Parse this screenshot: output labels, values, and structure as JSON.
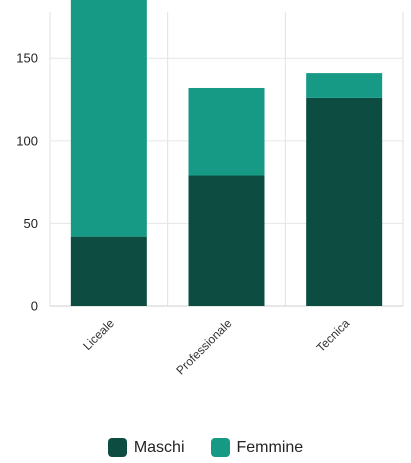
{
  "chart_data": {
    "type": "bar",
    "stacked": true,
    "categories": [
      "Liceale",
      "Professionale",
      "Tecnica"
    ],
    "series": [
      {
        "name": "Maschi",
        "values": [
          42,
          79,
          126
        ],
        "color": "#0d4d41"
      },
      {
        "name": "Femmine",
        "values": [
          147,
          53,
          15
        ],
        "color": "#179a85"
      }
    ],
    "ylim": [
      0,
      178
    ],
    "yticks": [
      0,
      50,
      100,
      150
    ],
    "grid": true,
    "legend_position": "bottom-center",
    "title": "",
    "xlabel": "",
    "ylabel": ""
  }
}
